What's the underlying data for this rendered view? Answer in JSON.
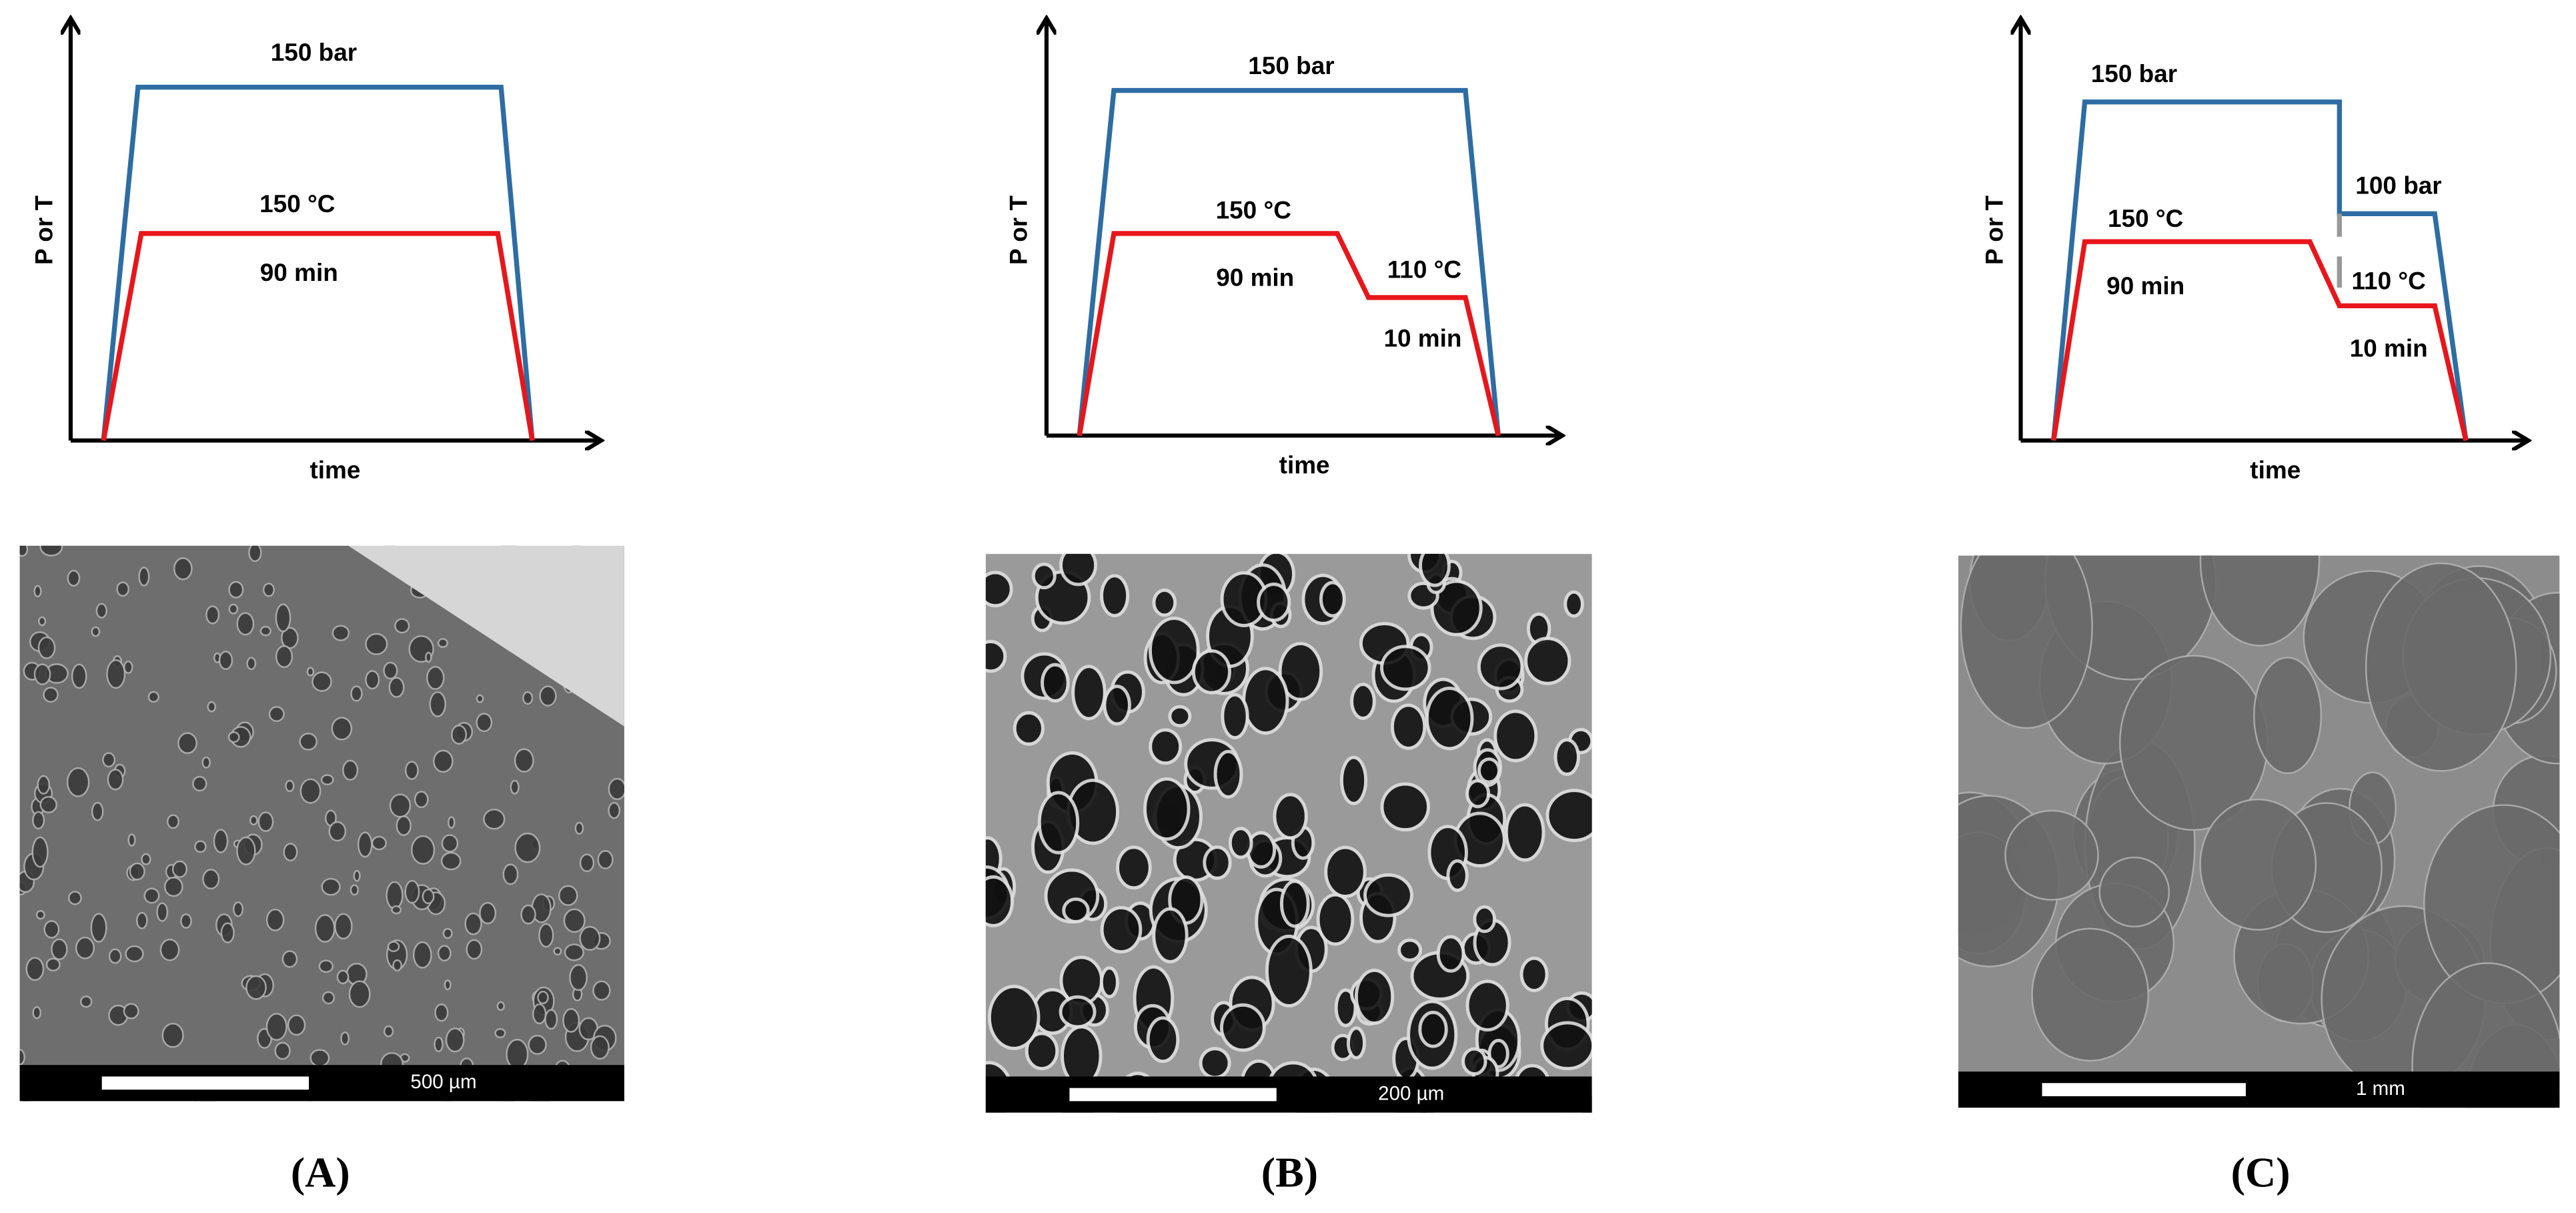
{
  "panels": [
    {
      "y_axis_label": "P or T",
      "x_axis_label": "time",
      "pressure": "150 bar",
      "temperature": "150 °C",
      "duration": "90 min",
      "scale_bar": "500 µm",
      "label": "(A)"
    },
    {
      "y_axis_label": "P or T",
      "x_axis_label": "time",
      "pressure": "150 bar",
      "temperature": "150 °C",
      "duration": "90 min",
      "temperature_2": "110 °C",
      "duration_2": "10 min",
      "scale_bar": "200 µm",
      "label": "(B)"
    },
    {
      "y_axis_label": "P or T",
      "x_axis_label": "time",
      "pressure": "150 bar",
      "pressure_2": "100 bar",
      "temperature": "150 °C",
      "duration": "90 min",
      "temperature_2": "110 °C",
      "duration_2": "10 min",
      "scale_bar": "1 mm",
      "label": "(C)"
    }
  ]
}
